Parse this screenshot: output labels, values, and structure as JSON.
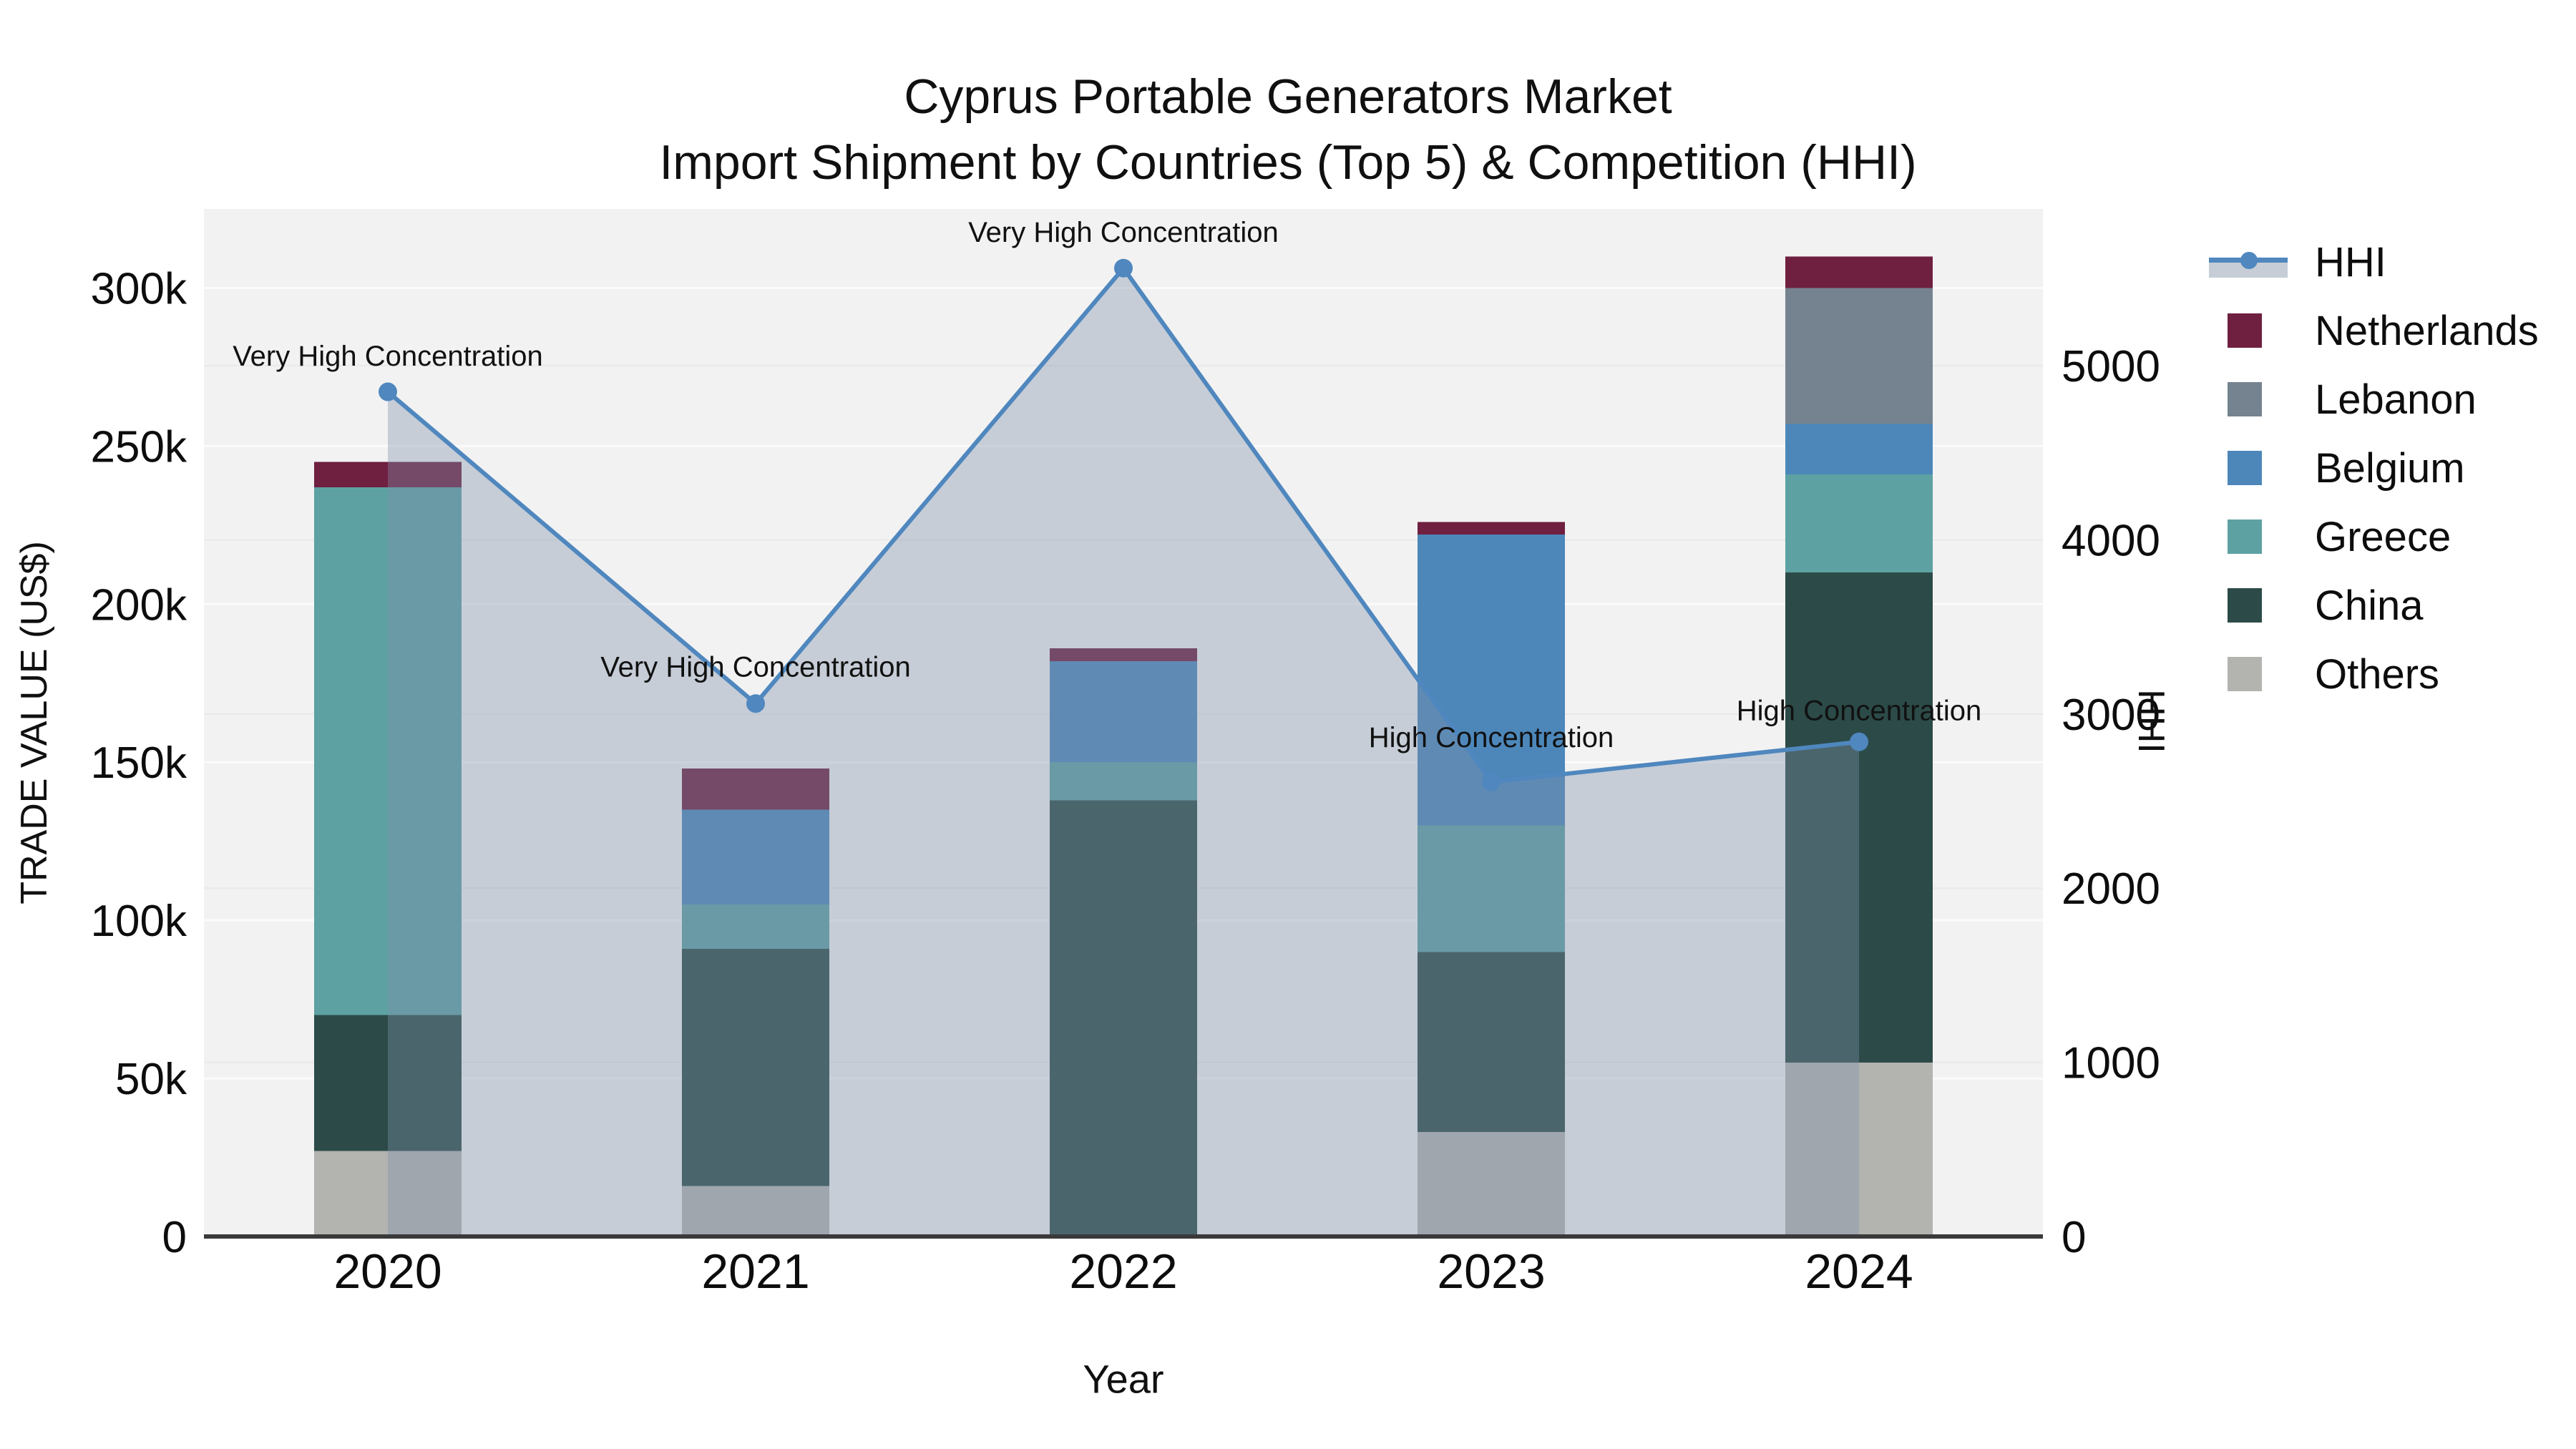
{
  "title": {
    "line1": "Cyprus Portable Generators Market",
    "line2": "Import Shipment by Countries (Top 5) & Competition (HHI)"
  },
  "legend": {
    "items": [
      {
        "label": "HHI",
        "type": "line",
        "color": "#4f87be",
        "area_color": "#c6cdd7"
      },
      {
        "label": "Netherlands",
        "type": "swatch",
        "color": "#6f1f3f"
      },
      {
        "label": "Lebanon",
        "type": "swatch",
        "color": "#74838f"
      },
      {
        "label": "Belgium",
        "type": "swatch",
        "color": "#4d87ba"
      },
      {
        "label": "Greece",
        "type": "swatch",
        "color": "#5ea1a3"
      },
      {
        "label": "China",
        "type": "swatch",
        "color": "#2c4b48"
      },
      {
        "label": "Others",
        "type": "swatch",
        "color": "#b3b3b0"
      }
    ]
  },
  "chart_data": {
    "type": "combo_stacked_bar_line",
    "title": "Cyprus Portable Generators Market Import Shipment by Countries (Top 5) & Competition (HHI)",
    "categories": [
      "2020",
      "2021",
      "2022",
      "2023",
      "2024"
    ],
    "xlabel": "Year",
    "ylabel_left": "TRADE VALUE (US$)",
    "ylabel_right": "HHI",
    "plot_bg": "#f2f2f2",
    "left_axis": {
      "tick_labels": [
        "0",
        "50k",
        "100k",
        "150k",
        "200k",
        "250k",
        "300k"
      ],
      "tick_values": [
        0,
        50000,
        100000,
        150000,
        200000,
        250000,
        300000
      ],
      "range": [
        0,
        325000
      ]
    },
    "right_axis": {
      "tick_labels": [
        "0",
        "1000",
        "2000",
        "3000",
        "4000",
        "5000"
      ],
      "tick_values": [
        0,
        1000,
        2000,
        3000,
        4000,
        5000
      ],
      "range": [
        0,
        5900
      ]
    },
    "series": [
      {
        "name": "Others",
        "color": "#b3b3b0",
        "values": [
          27000,
          16000,
          0,
          33000,
          55000
        ]
      },
      {
        "name": "China",
        "color": "#2c4b48",
        "values": [
          43000,
          75000,
          138000,
          57000,
          155000
        ]
      },
      {
        "name": "Greece",
        "color": "#5ea1a3",
        "values": [
          167000,
          14000,
          12000,
          40000,
          31000
        ]
      },
      {
        "name": "Belgium",
        "color": "#4d87ba",
        "values": [
          0,
          30000,
          32000,
          92000,
          16000
        ]
      },
      {
        "name": "Lebanon",
        "color": "#74838f",
        "values": [
          0,
          0,
          0,
          0,
          43000
        ]
      },
      {
        "name": "Netherlands",
        "color": "#6f1f3f",
        "values": [
          8000,
          13000,
          4000,
          4000,
          10000
        ]
      }
    ],
    "bar_totals": [
      245000,
      148000,
      186000,
      226000,
      310000
    ],
    "hhi_line": {
      "name": "HHI",
      "values": [
        4850,
        3060,
        5560,
        2610,
        2840
      ],
      "color": "#4f87be",
      "area_color": "rgba(126,144,172,0.38)"
    },
    "annotations": [
      {
        "text": "Very High Concentration",
        "category": "2020",
        "y": 5000
      },
      {
        "text": "Very High Concentration",
        "category": "2021",
        "y": 3215
      },
      {
        "text": "Very High Concentration",
        "category": "2022",
        "y": 5710
      },
      {
        "text": "High Concentration",
        "category": "2023",
        "y": 2810
      },
      {
        "text": "High Concentration",
        "category": "2024",
        "y": 2965
      }
    ],
    "legend_position": "right",
    "grid": true
  }
}
